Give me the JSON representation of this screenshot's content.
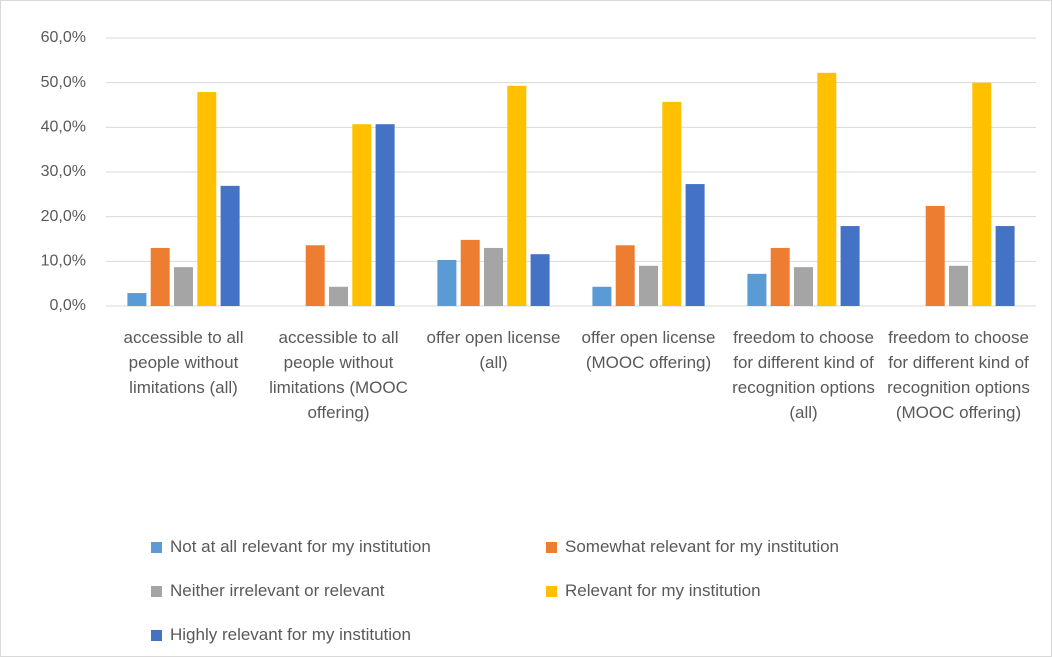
{
  "chart_data": {
    "type": "bar",
    "categories": [
      "accessible to all people without limitations (all)",
      "accessible to all people without limitations (MOOC offering)",
      "offer open license (all)",
      "offer open license (MOOC offering)",
      "freedom to choose for different kind of recognition options (all)",
      "freedom to choose for different kind of recognition options (MOOC offering)"
    ],
    "series": [
      {
        "name": "Not at all relevant for my institution",
        "color": "#5b9bd5",
        "values": [
          2.9,
          0,
          10.3,
          4.3,
          7.2,
          0
        ]
      },
      {
        "name": "Somewhat relevant for my institution",
        "color": "#ed7d31",
        "values": [
          13.0,
          13.6,
          14.8,
          13.6,
          13.0,
          22.4
        ]
      },
      {
        "name": "Neither irrelevant or relevant",
        "color": "#a5a5a5",
        "values": [
          8.7,
          4.3,
          13.0,
          9.0,
          8.7,
          9.0
        ]
      },
      {
        "name": "Relevant for my institution",
        "color": "#ffc000",
        "values": [
          47.9,
          40.7,
          49.3,
          45.7,
          52.2,
          50.0
        ]
      },
      {
        "name": "Highly relevant for my institution",
        "color": "#4472c4",
        "values": [
          26.9,
          40.7,
          11.6,
          27.3,
          17.9,
          17.9
        ]
      }
    ],
    "ylim": [
      0,
      60
    ],
    "yticks": [
      {
        "value": 0,
        "label": "0,0%"
      },
      {
        "value": 10,
        "label": "10,0%"
      },
      {
        "value": 20,
        "label": "20,0%"
      },
      {
        "value": 30,
        "label": "30,0%"
      },
      {
        "value": 40,
        "label": "40,0%"
      },
      {
        "value": 50,
        "label": "50,0%"
      },
      {
        "value": 60,
        "label": "60,0%"
      }
    ],
    "grid": true
  }
}
